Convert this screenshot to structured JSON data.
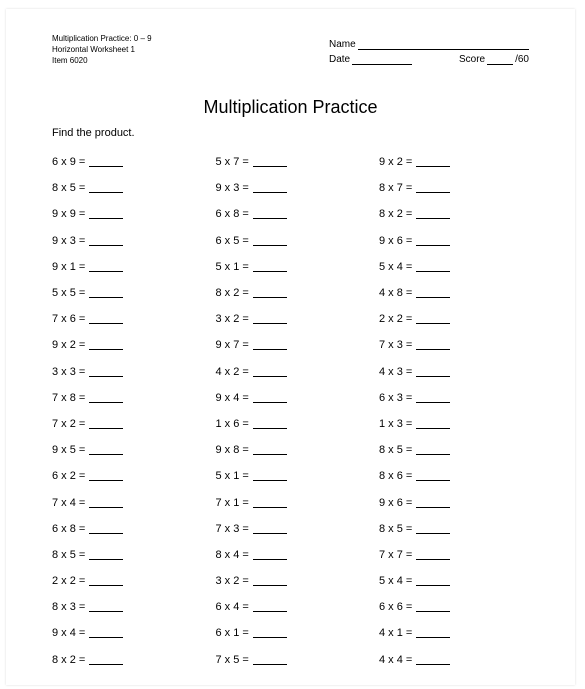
{
  "header": {
    "line1": "Multiplication Practice: 0 – 9",
    "line2": "Horizontal Worksheet 1",
    "line3": "Item 6020",
    "name_label": "Name",
    "date_label": "Date",
    "score_label": "Score",
    "score_denominator": "/60"
  },
  "title": "Multiplication Practice",
  "instructions": "Find the product.",
  "columns": [
    [
      "6 x 9 =",
      "8 x 5 =",
      "9 x 9 =",
      "9 x 3 =",
      "9 x 1 =",
      "5 x 5 =",
      "7 x 6 =",
      "9 x 2 =",
      "3 x 3 =",
      "7 x 8 =",
      "7 x 2 =",
      "9 x 5 =",
      "6 x 2 =",
      "7 x 4 =",
      "6 x 8 =",
      "8 x 5 =",
      "2 x 2 =",
      "8 x 3 =",
      "9 x 4 =",
      "8 x 2 ="
    ],
    [
      "5 x 7 =",
      "9 x 3 =",
      "6 x 8 =",
      "6 x 5 =",
      "5 x 1 =",
      "8 x 2 =",
      "3 x 2 =",
      "9 x 7 =",
      "4 x 2 =",
      "9 x 4 =",
      "1 x 6 =",
      "9 x 8 =",
      "5 x 1 =",
      "7 x 1 =",
      "7 x 3 =",
      "8 x 4 =",
      "3 x 2 =",
      "6 x 4 =",
      "6 x 1 =",
      "7 x 5 ="
    ],
    [
      "9 x 2 =",
      "8 x 7 =",
      "8 x 2 =",
      "9 x 6 =",
      "5 x 4 =",
      "4 x 8 =",
      "2 x 2 =",
      "7 x 3 =",
      "4 x 3 =",
      "6 x 3 =",
      "1 x 3 =",
      "8 x 5 =",
      "8 x 6 =",
      "9 x 6 =",
      "8 x 5 =",
      "7 x 7 =",
      "5 x 4 =",
      "6 x 6 =",
      "4 x 1 =",
      "4 x 4 ="
    ]
  ]
}
